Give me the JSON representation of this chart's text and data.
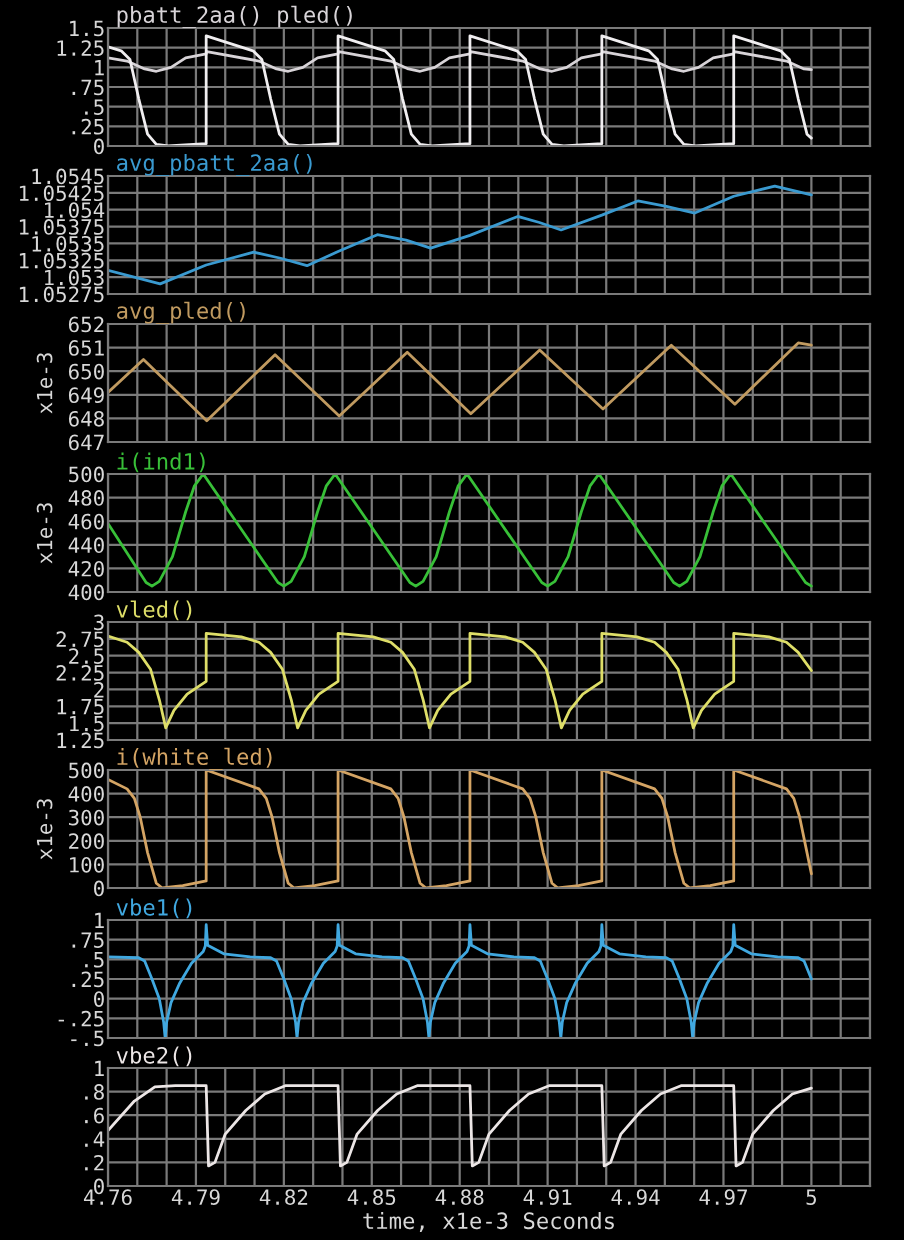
{
  "chart_data": [
    {
      "type": "line",
      "title": "pbatt_2aa() pled()",
      "xlim": [
        4.76,
        5.02
      ],
      "ylim": [
        0,
        1.5
      ],
      "yticks": [
        0,
        {
          "value": 0.25,
          "label": ".25"
        },
        {
          "value": 0.5,
          "label": ".5"
        },
        {
          "value": 0.75,
          "label": ".75"
        },
        1,
        1.25,
        1.5
      ],
      "xticks": [
        4.76,
        {
          "value": 4.77,
          "label": null
        },
        {
          "value": 4.78,
          "label": null
        },
        4.79,
        {
          "value": 4.8,
          "label": null
        },
        {
          "value": 4.81,
          "label": null
        },
        4.82,
        {
          "value": 4.83,
          "label": null
        },
        {
          "value": 4.84,
          "label": null
        },
        4.85,
        {
          "value": 4.86,
          "label": null
        },
        {
          "value": 4.87,
          "label": null
        },
        4.88,
        {
          "value": 4.89,
          "label": null
        },
        {
          "value": 4.9,
          "label": null
        },
        4.91,
        {
          "value": 4.92,
          "label": null
        },
        {
          "value": 4.93,
          "label": null
        },
        4.94,
        {
          "value": 4.95,
          "label": null
        },
        {
          "value": 4.96,
          "label": null
        },
        4.97,
        {
          "value": 4.98,
          "label": null
        },
        {
          "value": 4.99,
          "label": null
        },
        5,
        {
          "value": 5.01,
          "label": null
        },
        {
          "value": 5.02,
          "label": null
        }
      ],
      "grid": true,
      "tick_labels": "y",
      "series": [
        {
          "color": "#d8d4d8",
          "x": [
            4.76,
            4.7665,
            4.7725,
            4.7765,
            4.7815,
            4.7865,
            4.7935,
            4.7937,
            4.8115,
            4.8175,
            4.8215,
            4.8265,
            4.8315,
            4.8385,
            4.8387,
            4.8565,
            4.8625,
            4.8665,
            4.8715,
            4.8765,
            4.8835,
            4.8837,
            4.9015,
            4.9075,
            4.9115,
            4.9165,
            4.9215,
            4.9285,
            4.9287,
            4.9465,
            4.9525,
            4.9565,
            4.9615,
            4.9665,
            4.9735,
            4.9737,
            4.9915,
            4.9975,
            5.0
          ],
          "values": [
            1.12,
            1.08,
            0.98,
            0.95,
            1.0,
            1.12,
            1.17,
            1.2,
            1.08,
            0.98,
            0.95,
            1.0,
            1.12,
            1.17,
            1.2,
            1.08,
            0.98,
            0.95,
            1.0,
            1.12,
            1.17,
            1.2,
            1.08,
            0.98,
            0.95,
            1.0,
            1.12,
            1.17,
            1.2,
            1.08,
            0.98,
            0.95,
            1.0,
            1.12,
            1.17,
            1.2,
            1.08,
            0.98,
            0.97
          ]
        },
        {
          "color": "#f0eef0",
          "x": [
            4.76,
            4.7645,
            4.7675,
            4.7705,
            4.7735,
            4.7765,
            4.7805,
            4.7935,
            4.7935,
            4.8095,
            4.8125,
            4.8155,
            4.8185,
            4.8215,
            4.8255,
            4.8385,
            4.8385,
            4.8545,
            4.8575,
            4.8605,
            4.8635,
            4.8665,
            4.8705,
            4.8835,
            4.8835,
            4.8995,
            4.9025,
            4.9055,
            4.9085,
            4.9115,
            4.9155,
            4.9285,
            4.9285,
            4.9445,
            4.9475,
            4.9505,
            4.9535,
            4.9565,
            4.9605,
            4.9735,
            4.9735,
            4.9895,
            4.9925,
            4.9955,
            4.9985,
            5.0
          ],
          "values": [
            1.26,
            1.21,
            1.1,
            0.6,
            0.15,
            0.02,
            0,
            0.03,
            1.4,
            1.21,
            1.1,
            0.6,
            0.15,
            0.02,
            0,
            0.03,
            1.4,
            1.21,
            1.1,
            0.6,
            0.15,
            0.02,
            0,
            0.03,
            1.4,
            1.21,
            1.1,
            0.6,
            0.15,
            0.02,
            0,
            0.03,
            1.4,
            1.21,
            1.1,
            0.6,
            0.15,
            0.02,
            0,
            0.03,
            1.4,
            1.21,
            1.1,
            0.6,
            0.15,
            0.1
          ]
        }
      ]
    },
    {
      "type": "line",
      "title": "avg_pbatt_2aa()",
      "xlim": [
        4.76,
        5.02
      ],
      "ylim": [
        1.05275,
        1.0545
      ],
      "yticks": [
        1.05275,
        1.053,
        1.05325,
        1.0535,
        1.05375,
        1.054,
        1.05425,
        1.0545
      ],
      "xticks": [
        4.76,
        {
          "value": 4.77,
          "label": null
        },
        {
          "value": 4.78,
          "label": null
        },
        4.79,
        {
          "value": 4.8,
          "label": null
        },
        {
          "value": 4.81,
          "label": null
        },
        4.82,
        {
          "value": 4.83,
          "label": null
        },
        {
          "value": 4.84,
          "label": null
        },
        4.85,
        {
          "value": 4.86,
          "label": null
        },
        {
          "value": 4.87,
          "label": null
        },
        4.88,
        {
          "value": 4.89,
          "label": null
        },
        {
          "value": 4.9,
          "label": null
        },
        4.91,
        {
          "value": 4.92,
          "label": null
        },
        {
          "value": 4.93,
          "label": null
        },
        4.94,
        {
          "value": 4.95,
          "label": null
        },
        {
          "value": 4.96,
          "label": null
        },
        4.97,
        {
          "value": 4.98,
          "label": null
        },
        {
          "value": 4.99,
          "label": null
        },
        5,
        {
          "value": 5.01,
          "label": null
        },
        {
          "value": 5.02,
          "label": null
        }
      ],
      "grid": true,
      "tick_labels": "y",
      "series": [
        {
          "color": "#3a9ad0",
          "x": [
            4.76,
            4.7778,
            4.7935,
            4.8097,
            4.8189,
            4.8279,
            4.8385,
            4.8519,
            4.8617,
            4.8701,
            4.8835,
            4.8998,
            4.9072,
            4.9146,
            4.9285,
            4.9408,
            4.9505,
            4.9602,
            4.9735,
            4.9875,
            5.0
          ],
          "values": [
            1.0531,
            1.0529,
            1.05318,
            1.05337,
            1.05328,
            1.05317,
            1.05338,
            1.05363,
            1.05355,
            1.05343,
            1.05362,
            1.0539,
            1.05381,
            1.0537,
            1.05392,
            1.05413,
            1.05405,
            1.05395,
            1.0542,
            1.05435,
            1.05422
          ]
        }
      ]
    },
    {
      "type": "line",
      "title": "avg_pled()",
      "ylabel": "x1e-3",
      "xlim": [
        4.76,
        5.02
      ],
      "ylim": [
        647,
        652
      ],
      "yticks": [
        647,
        648,
        649,
        650,
        651,
        652
      ],
      "xticks": [
        4.76,
        {
          "value": 4.77,
          "label": null
        },
        {
          "value": 4.78,
          "label": null
        },
        4.79,
        {
          "value": 4.8,
          "label": null
        },
        {
          "value": 4.81,
          "label": null
        },
        4.82,
        {
          "value": 4.83,
          "label": null
        },
        {
          "value": 4.84,
          "label": null
        },
        4.85,
        {
          "value": 4.86,
          "label": null
        },
        {
          "value": 4.87,
          "label": null
        },
        4.88,
        {
          "value": 4.89,
          "label": null
        },
        {
          "value": 4.9,
          "label": null
        },
        4.91,
        {
          "value": 4.92,
          "label": null
        },
        {
          "value": 4.93,
          "label": null
        },
        4.94,
        {
          "value": 4.95,
          "label": null
        },
        {
          "value": 4.96,
          "label": null
        },
        4.97,
        {
          "value": 4.98,
          "label": null
        },
        {
          "value": 4.99,
          "label": null
        },
        5,
        {
          "value": 5.01,
          "label": null
        },
        {
          "value": 5.02,
          "label": null
        }
      ],
      "grid": true,
      "tick_labels": "y",
      "series": [
        {
          "color": "#c09a60",
          "x": [
            4.76,
            4.7721,
            4.7937,
            4.817,
            4.8389,
            4.8621,
            4.8838,
            4.9073,
            4.9289,
            4.9522,
            4.9739,
            4.9955,
            5.0
          ],
          "values": [
            649.1,
            650.5,
            647.9,
            650.7,
            648.1,
            650.8,
            648.2,
            650.9,
            648.4,
            651.1,
            648.6,
            651.2,
            651.1
          ]
        }
      ]
    },
    {
      "type": "line",
      "title": "i(ind1)",
      "ylabel": "x1e-3",
      "xlim": [
        4.76,
        5.02
      ],
      "ylim": [
        400,
        500
      ],
      "yticks": [
        400,
        420,
        440,
        460,
        480,
        500
      ],
      "xticks": [
        4.76,
        {
          "value": 4.77,
          "label": null
        },
        {
          "value": 4.78,
          "label": null
        },
        4.79,
        {
          "value": 4.8,
          "label": null
        },
        {
          "value": 4.81,
          "label": null
        },
        4.82,
        {
          "value": 4.83,
          "label": null
        },
        {
          "value": 4.84,
          "label": null
        },
        4.85,
        {
          "value": 4.86,
          "label": null
        },
        {
          "value": 4.87,
          "label": null
        },
        4.88,
        {
          "value": 4.89,
          "label": null
        },
        {
          "value": 4.9,
          "label": null
        },
        4.91,
        {
          "value": 4.92,
          "label": null
        },
        {
          "value": 4.93,
          "label": null
        },
        4.94,
        {
          "value": 4.95,
          "label": null
        },
        {
          "value": 4.96,
          "label": null
        },
        4.97,
        {
          "value": 4.98,
          "label": null
        },
        {
          "value": 4.99,
          "label": null
        },
        5,
        {
          "value": 5.01,
          "label": null
        },
        {
          "value": 5.02,
          "label": null
        }
      ],
      "grid": true,
      "tick_labels": "y",
      "series": [
        {
          "color": "#38c038",
          "x": [
            4.76,
            4.773,
            4.775,
            4.7775,
            4.782,
            4.7865,
            4.7895,
            4.7925,
            4.818,
            4.82,
            4.8225,
            4.827,
            4.8315,
            4.8345,
            4.8375,
            4.863,
            4.865,
            4.8675,
            4.872,
            4.8765,
            4.8795,
            4.8825,
            4.908,
            4.91,
            4.9125,
            4.917,
            4.9215,
            4.9245,
            4.9275,
            4.953,
            4.955,
            4.9575,
            4.962,
            4.9665,
            4.9695,
            4.9725,
            4.998,
            5.0
          ],
          "values": [
            458,
            408,
            405,
            409,
            430,
            468,
            490,
            500,
            408,
            405,
            409,
            430,
            468,
            490,
            500,
            408,
            405,
            409,
            430,
            468,
            490,
            500,
            408,
            405,
            409,
            430,
            468,
            490,
            500,
            408,
            405,
            409,
            430,
            468,
            490,
            500,
            408,
            405
          ]
        }
      ]
    },
    {
      "type": "line",
      "title": "vled()",
      "xlim": [
        4.76,
        5.02
      ],
      "ylim": [
        1.25,
        3
      ],
      "yticks": [
        1.25,
        1.5,
        1.75,
        2,
        2.25,
        2.5,
        2.75,
        3
      ],
      "xticks": [
        4.76,
        {
          "value": 4.77,
          "label": null
        },
        {
          "value": 4.78,
          "label": null
        },
        4.79,
        {
          "value": 4.8,
          "label": null
        },
        {
          "value": 4.81,
          "label": null
        },
        4.82,
        {
          "value": 4.83,
          "label": null
        },
        {
          "value": 4.84,
          "label": null
        },
        4.85,
        {
          "value": 4.86,
          "label": null
        },
        {
          "value": 4.87,
          "label": null
        },
        4.88,
        {
          "value": 4.89,
          "label": null
        },
        {
          "value": 4.9,
          "label": null
        },
        4.91,
        {
          "value": 4.92,
          "label": null
        },
        {
          "value": 4.93,
          "label": null
        },
        4.94,
        {
          "value": 4.95,
          "label": null
        },
        {
          "value": 4.96,
          "label": null
        },
        4.97,
        {
          "value": 4.98,
          "label": null
        },
        {
          "value": 4.99,
          "label": null
        },
        5,
        {
          "value": 5.01,
          "label": null
        },
        {
          "value": 5.02,
          "label": null
        }
      ],
      "grid": true,
      "tick_labels": "y",
      "series": [
        {
          "color": "#dede68",
          "x": [
            4.76,
            4.7665,
            4.7705,
            4.7745,
            4.7775,
            4.7797,
            4.7825,
            4.787,
            4.7935,
            4.7935,
            4.8055,
            4.8115,
            4.8155,
            4.8195,
            4.8225,
            4.8247,
            4.8275,
            4.832,
            4.8385,
            4.8385,
            4.8505,
            4.8565,
            4.8605,
            4.8645,
            4.8675,
            4.8697,
            4.8725,
            4.877,
            4.8835,
            4.8835,
            4.8955,
            4.9015,
            4.9055,
            4.9095,
            4.9125,
            4.9147,
            4.9175,
            4.922,
            4.9285,
            4.9285,
            4.9405,
            4.9465,
            4.9505,
            4.9545,
            4.9575,
            4.9597,
            4.9625,
            4.967,
            4.9735,
            4.9735,
            4.9855,
            4.9915,
            4.9955,
            5.0
          ],
          "values": [
            2.79,
            2.7,
            2.55,
            2.3,
            1.85,
            1.43,
            1.69,
            1.93,
            2.12,
            2.83,
            2.78,
            2.7,
            2.55,
            2.3,
            1.85,
            1.43,
            1.69,
            1.93,
            2.12,
            2.83,
            2.78,
            2.7,
            2.55,
            2.3,
            1.85,
            1.43,
            1.69,
            1.93,
            2.12,
            2.83,
            2.78,
            2.7,
            2.55,
            2.3,
            1.85,
            1.43,
            1.69,
            1.93,
            2.12,
            2.83,
            2.78,
            2.7,
            2.55,
            2.3,
            1.85,
            1.43,
            1.69,
            1.93,
            2.12,
            2.83,
            2.78,
            2.7,
            2.55,
            2.28
          ]
        }
      ]
    },
    {
      "type": "line",
      "title": "i(white_led)",
      "ylabel": "x1e-3",
      "xlim": [
        4.76,
        5.02
      ],
      "ylim": [
        0,
        500
      ],
      "yticks": [
        0,
        100,
        200,
        300,
        400,
        500
      ],
      "xticks": [
        4.76,
        {
          "value": 4.77,
          "label": null
        },
        {
          "value": 4.78,
          "label": null
        },
        4.79,
        {
          "value": 4.8,
          "label": null
        },
        {
          "value": 4.81,
          "label": null
        },
        4.82,
        {
          "value": 4.83,
          "label": null
        },
        {
          "value": 4.84,
          "label": null
        },
        4.85,
        {
          "value": 4.86,
          "label": null
        },
        {
          "value": 4.87,
          "label": null
        },
        4.88,
        {
          "value": 4.89,
          "label": null
        },
        {
          "value": 4.9,
          "label": null
        },
        4.91,
        {
          "value": 4.92,
          "label": null
        },
        {
          "value": 4.93,
          "label": null
        },
        4.94,
        {
          "value": 4.95,
          "label": null
        },
        {
          "value": 4.96,
          "label": null
        },
        4.97,
        {
          "value": 4.98,
          "label": null
        },
        {
          "value": 4.99,
          "label": null
        },
        5,
        {
          "value": 5.01,
          "label": null
        },
        {
          "value": 5.02,
          "label": null
        }
      ],
      "grid": true,
      "tick_labels": "y",
      "series": [
        {
          "color": "#d4a464",
          "x": [
            4.76,
            4.7665,
            4.769,
            4.771,
            4.7735,
            4.7765,
            4.7785,
            4.7855,
            4.7935,
            4.7935,
            4.8115,
            4.814,
            4.816,
            4.8185,
            4.8215,
            4.8235,
            4.8305,
            4.8385,
            4.8385,
            4.8565,
            4.859,
            4.861,
            4.8635,
            4.8665,
            4.8685,
            4.8755,
            4.8835,
            4.8835,
            4.9015,
            4.904,
            4.906,
            4.9085,
            4.9115,
            4.9135,
            4.9205,
            4.9285,
            4.9285,
            4.9465,
            4.949,
            4.951,
            4.9535,
            4.9565,
            4.9585,
            4.9655,
            4.9735,
            4.9735,
            4.9915,
            4.994,
            4.996,
            4.9985,
            5.0
          ],
          "values": [
            460,
            420,
            380,
            300,
            150,
            20,
            0,
            10,
            30,
            500,
            420,
            380,
            300,
            150,
            20,
            0,
            10,
            30,
            500,
            420,
            380,
            300,
            150,
            20,
            0,
            10,
            30,
            500,
            420,
            380,
            300,
            150,
            20,
            0,
            10,
            30,
            500,
            420,
            380,
            300,
            150,
            20,
            0,
            10,
            30,
            500,
            420,
            380,
            300,
            150,
            60
          ]
        }
      ]
    },
    {
      "type": "line",
      "title": "vbe1()",
      "xlim": [
        4.76,
        5.02
      ],
      "ylim": [
        -0.5,
        1
      ],
      "yticks": [
        {
          "value": -0.5,
          "label": "-.5"
        },
        {
          "value": -0.25,
          "label": "-.25"
        },
        0,
        {
          "value": 0.25,
          "label": ".25"
        },
        {
          "value": 0.5,
          "label": ".5"
        },
        {
          "value": 0.75,
          "label": ".75"
        },
        1
      ],
      "xticks": [
        4.76,
        {
          "value": 4.77,
          "label": null
        },
        {
          "value": 4.78,
          "label": null
        },
        4.79,
        {
          "value": 4.8,
          "label": null
        },
        {
          "value": 4.81,
          "label": null
        },
        4.82,
        {
          "value": 4.83,
          "label": null
        },
        {
          "value": 4.84,
          "label": null
        },
        4.85,
        {
          "value": 4.86,
          "label": null
        },
        {
          "value": 4.87,
          "label": null
        },
        4.88,
        {
          "value": 4.89,
          "label": null
        },
        {
          "value": 4.9,
          "label": null
        },
        4.91,
        {
          "value": 4.92,
          "label": null
        },
        {
          "value": 4.93,
          "label": null
        },
        4.94,
        {
          "value": 4.95,
          "label": null
        },
        {
          "value": 4.96,
          "label": null
        },
        4.97,
        {
          "value": 4.98,
          "label": null
        },
        {
          "value": 4.99,
          "label": null
        },
        5,
        {
          "value": 5.01,
          "label": null
        },
        {
          "value": 5.02,
          "label": null
        }
      ],
      "grid": true,
      "tick_labels": "y",
      "series": [
        {
          "color": "#40a8e0",
          "x": [
            4.76,
            4.7705,
            4.7725,
            4.775,
            4.7775,
            4.779,
            4.7795,
            4.78,
            4.7815,
            4.7845,
            4.7885,
            4.7925,
            4.7932,
            4.7935,
            4.794,
            4.7995,
            4.8085,
            4.8155,
            4.8175,
            4.82,
            4.8225,
            4.824,
            4.8245,
            4.825,
            4.8265,
            4.8295,
            4.8335,
            4.8375,
            4.8382,
            4.8385,
            4.839,
            4.8445,
            4.8535,
            4.8605,
            4.8625,
            4.865,
            4.8675,
            4.869,
            4.8695,
            4.87,
            4.8715,
            4.8745,
            4.8785,
            4.8825,
            4.8832,
            4.8835,
            4.884,
            4.8895,
            4.8985,
            4.9055,
            4.9075,
            4.91,
            4.9125,
            4.914,
            4.9145,
            4.915,
            4.9165,
            4.9195,
            4.9235,
            4.9275,
            4.9282,
            4.9285,
            4.929,
            4.9345,
            4.9435,
            4.9505,
            4.9525,
            4.955,
            4.9575,
            4.959,
            4.9595,
            4.96,
            4.9615,
            4.9645,
            4.9685,
            4.9725,
            4.9732,
            4.9735,
            4.974,
            4.9795,
            4.9885,
            4.9955,
            4.9975,
            5.0
          ],
          "values": [
            0.53,
            0.52,
            0.48,
            0.25,
            0,
            -0.3,
            -0.5,
            -0.3,
            -0.05,
            0.2,
            0.45,
            0.6,
            0.67,
            0.94,
            0.68,
            0.57,
            0.53,
            0.52,
            0.48,
            0.25,
            0,
            -0.3,
            -0.5,
            -0.3,
            -0.05,
            0.2,
            0.45,
            0.6,
            0.67,
            0.94,
            0.68,
            0.57,
            0.53,
            0.52,
            0.48,
            0.25,
            0,
            -0.3,
            -0.5,
            -0.3,
            -0.05,
            0.2,
            0.45,
            0.6,
            0.67,
            0.94,
            0.68,
            0.57,
            0.53,
            0.52,
            0.48,
            0.25,
            0,
            -0.3,
            -0.5,
            -0.3,
            -0.05,
            0.2,
            0.45,
            0.6,
            0.67,
            0.94,
            0.68,
            0.57,
            0.53,
            0.52,
            0.48,
            0.25,
            0,
            -0.3,
            -0.5,
            -0.3,
            -0.05,
            0.2,
            0.45,
            0.6,
            0.67,
            0.94,
            0.68,
            0.57,
            0.53,
            0.52,
            0.48,
            0.25
          ]
        }
      ]
    },
    {
      "type": "line",
      "title": "vbe2()",
      "xlabel": "time, x1e-3 Seconds",
      "xlim": [
        4.76,
        5.02
      ],
      "ylim": [
        0,
        1
      ],
      "yticks": [
        0,
        {
          "value": 0.2,
          "label": ".2"
        },
        {
          "value": 0.4,
          "label": ".4"
        },
        {
          "value": 0.6,
          "label": ".6"
        },
        {
          "value": 0.8,
          "label": ".8"
        },
        1
      ],
      "xticks": [
        4.76,
        {
          "value": 4.77,
          "label": null
        },
        {
          "value": 4.78,
          "label": null
        },
        4.79,
        {
          "value": 4.8,
          "label": null
        },
        {
          "value": 4.81,
          "label": null
        },
        4.82,
        {
          "value": 4.83,
          "label": null
        },
        {
          "value": 4.84,
          "label": null
        },
        4.85,
        {
          "value": 4.86,
          "label": null
        },
        {
          "value": 4.87,
          "label": null
        },
        4.88,
        {
          "value": 4.89,
          "label": null
        },
        {
          "value": 4.9,
          "label": null
        },
        4.91,
        {
          "value": 4.92,
          "label": null
        },
        {
          "value": 4.93,
          "label": null
        },
        4.94,
        {
          "value": 4.95,
          "label": null
        },
        {
          "value": 4.96,
          "label": null
        },
        4.97,
        {
          "value": 4.98,
          "label": null
        },
        {
          "value": 4.99,
          "label": null
        },
        5,
        {
          "value": 5.01,
          "label": null
        },
        {
          "value": 5.02,
          "label": null
        }
      ],
      "grid": true,
      "series": [
        {
          "color": "#ece6e6",
          "x": [
            4.76,
            4.769,
            4.776,
            4.783,
            4.7935,
            4.7943,
            4.7965,
            4.8,
            4.807,
            4.8135,
            4.8205,
            4.8385,
            4.8393,
            4.8415,
            4.845,
            4.852,
            4.8585,
            4.8655,
            4.8835,
            4.8843,
            4.8865,
            4.89,
            4.897,
            4.9035,
            4.9105,
            4.9285,
            4.9293,
            4.9315,
            4.935,
            4.942,
            4.9485,
            4.9555,
            4.9735,
            4.9743,
            4.9765,
            4.98,
            4.987,
            4.9935,
            5.0
          ],
          "values": [
            0.47,
            0.72,
            0.84,
            0.85,
            0.85,
            0.17,
            0.2,
            0.44,
            0.64,
            0.78,
            0.85,
            0.85,
            0.17,
            0.2,
            0.44,
            0.64,
            0.78,
            0.85,
            0.85,
            0.17,
            0.2,
            0.44,
            0.64,
            0.78,
            0.85,
            0.85,
            0.17,
            0.2,
            0.44,
            0.64,
            0.78,
            0.85,
            0.85,
            0.17,
            0.2,
            0.44,
            0.64,
            0.78,
            0.83
          ]
        }
      ]
    }
  ]
}
